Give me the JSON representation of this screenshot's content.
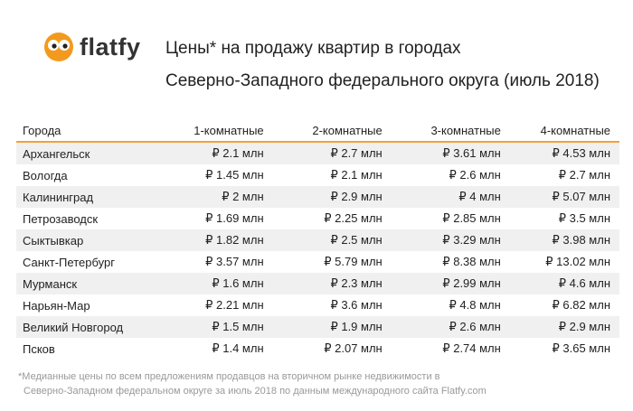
{
  "logo": {
    "text": "flatfy"
  },
  "header": {
    "title_lines": [
      "Цены* на продажу квартир в городах",
      "Северно-Западного федерального округа (июль 2018)"
    ]
  },
  "table": {
    "columns": [
      "Города",
      "1-комнатные",
      "2-комнатные",
      "3-комнатные",
      "4-комнатные"
    ],
    "rows": [
      [
        "Архангельск",
        "₽ 2.1 млн",
        "₽ 2.7 млн",
        "₽ 3.61 млн",
        "₽ 4.53 млн"
      ],
      [
        "Вологда",
        "₽ 1.45 млн",
        "₽ 2.1 млн",
        "₽ 2.6 млн",
        "₽ 2.7 млн"
      ],
      [
        "Калининград",
        "₽ 2 млн",
        "₽ 2.9 млн",
        "₽ 4 млн",
        "₽ 5.07 млн"
      ],
      [
        "Петрозаводск",
        "₽ 1.69 млн",
        "₽ 2.25 млн",
        "₽ 2.85 млн",
        "₽ 3.5 млн"
      ],
      [
        "Сыктывкар",
        "₽ 1.82 млн",
        "₽ 2.5 млн",
        "₽ 3.29 млн",
        "₽ 3.98 млн"
      ],
      [
        "Санкт-Петербург",
        "₽ 3.57 млн",
        "₽ 5.79 млн",
        "₽ 8.38 млн",
        "₽ 13.02 млн"
      ],
      [
        "Мурманск",
        "₽ 1.6 млн",
        "₽ 2.3 млн",
        "₽ 2.99 млн",
        "₽ 4.6 млн"
      ],
      [
        "Нарьян-Мар",
        "₽ 2.21 млн",
        "₽ 3.6 млн",
        "₽ 4.8 млн",
        "₽ 6.82 млн"
      ],
      [
        "Великий Новгород",
        "₽ 1.5 млн",
        "₽ 1.9 млн",
        "₽ 2.6 млн",
        "₽ 2.9 млн"
      ],
      [
        "Псков",
        "₽ 1.4 млн",
        "₽ 2.07 млн",
        "₽ 2.74 млн",
        "₽ 3.65 млн"
      ]
    ]
  },
  "footnote": {
    "lines": [
      "*Медианные цены по всем предложениям продавцов на вторичном рынке недвижимости в",
      "Северно-Западном федеральном округе за июль 2018 по данным международного сайта Flatfy.com"
    ]
  }
}
